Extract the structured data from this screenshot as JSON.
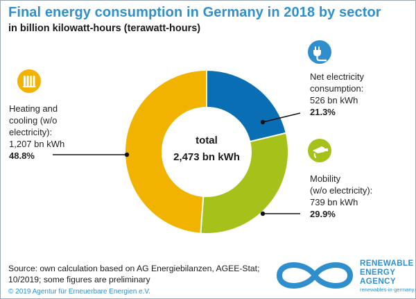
{
  "title": "Final energy consumption in Germany in 2018 by sector",
  "subtitle": "in billion kilowatt-hours (terawatt-hours)",
  "chart_data": {
    "type": "pie",
    "center_label": {
      "line1": "total",
      "line2": "2,473 bn kWh"
    },
    "total_bn_kwh": 2473,
    "slices": [
      {
        "name": "Net electricity consumption",
        "value": 526,
        "percent": 21.3,
        "color": "#0a6eb4",
        "lines": [
          "Net electricity",
          "consumption:",
          "526 bn kWh"
        ],
        "pct_label": "21.3%",
        "icon": "electric-plug-icon"
      },
      {
        "name": "Mobility (w/o electricity)",
        "value": 739,
        "percent": 29.9,
        "color": "#a6c21a",
        "lines": [
          "Mobility",
          "(w/o electricity):",
          "739 bn kWh"
        ],
        "pct_label": "29.9%",
        "icon": "fuel-nozzle-icon"
      },
      {
        "name": "Heating and cooling (w/o electricity)",
        "value": 1207,
        "percent": 48.8,
        "color": "#f2b200",
        "lines": [
          "Heating and",
          "cooling (w/o",
          "electricity):",
          "1,207 bn kWh"
        ],
        "pct_label": "48.8%",
        "icon": "radiator-icon"
      }
    ]
  },
  "source_lines": [
    "Source: own calculation based on AG Energiebilanzen, AGEE-Stat;",
    "10/2019; some figures are preliminary"
  ],
  "copyright": "© 2019 Agentur für Erneuerbare Energien e.V.",
  "logo": {
    "lines": [
      "RENEWABLE",
      "ENERGY",
      "AGENCY"
    ],
    "url": "renewables-in-germany.com",
    "color": "#2f8fcd"
  }
}
